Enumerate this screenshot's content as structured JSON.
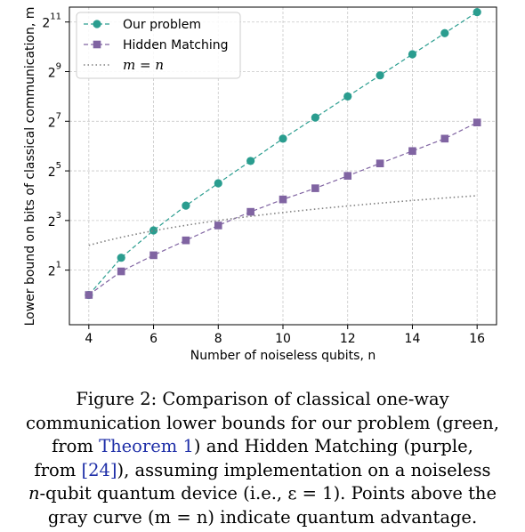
{
  "chart_data": {
    "type": "line",
    "xlabel": "Number of noiseless qubits, n",
    "ylabel": "Lower bound on bits of classical communication, m",
    "x_ticks": [
      4,
      6,
      8,
      10,
      12,
      14,
      16
    ],
    "y_ticks": [
      1,
      3,
      5,
      7,
      9,
      11
    ],
    "y_tick_base": "2",
    "y_scale": "log2",
    "xlim": [
      3.4,
      16.6
    ],
    "ylim": [
      -1.2,
      11.6
    ],
    "grid": true,
    "legend_position": "top-left",
    "series": [
      {
        "name": "Our problem",
        "color": "#2a9d8f",
        "marker": "circle",
        "line_style": "dashed",
        "x": [
          4,
          5,
          6,
          7,
          8,
          9,
          10,
          11,
          12,
          13,
          14,
          15,
          16
        ],
        "y": [
          0.0,
          1.5,
          2.6,
          3.6,
          4.5,
          5.4,
          6.3,
          7.15,
          8.0,
          8.85,
          9.7,
          10.55,
          11.4
        ]
      },
      {
        "name": "Hidden Matching",
        "color": "#8064a2",
        "marker": "square",
        "line_style": "dashed",
        "x": [
          4,
          5,
          6,
          7,
          8,
          9,
          10,
          11,
          12,
          13,
          14,
          15,
          16
        ],
        "y": [
          0.0,
          0.95,
          1.6,
          2.2,
          2.8,
          3.35,
          3.85,
          4.3,
          4.8,
          5.3,
          5.8,
          6.3,
          6.95
        ]
      },
      {
        "name": "m = n",
        "color": "#808080",
        "marker": "none",
        "line_style": "dotted",
        "x_range": [
          4,
          16
        ],
        "y_function": "log2(n)"
      }
    ]
  },
  "caption": {
    "line1": "Figure 2: Comparison of classical one-way",
    "line2": "communication lower bounds for our problem (green,",
    "line3_before": "from ",
    "line3_ref": "Theorem 1",
    "line3_after": ") and Hidden Matching (purple,",
    "line4_before": "from ",
    "line4_ref": "[24]",
    "line4_after": "), assuming implementation on a noiseless",
    "line5_n": "n",
    "line5_text": "-qubit quantum device (i.e., ε = 1). Points above the",
    "line6": "gray curve (m = n) indicate quantum advantage."
  }
}
